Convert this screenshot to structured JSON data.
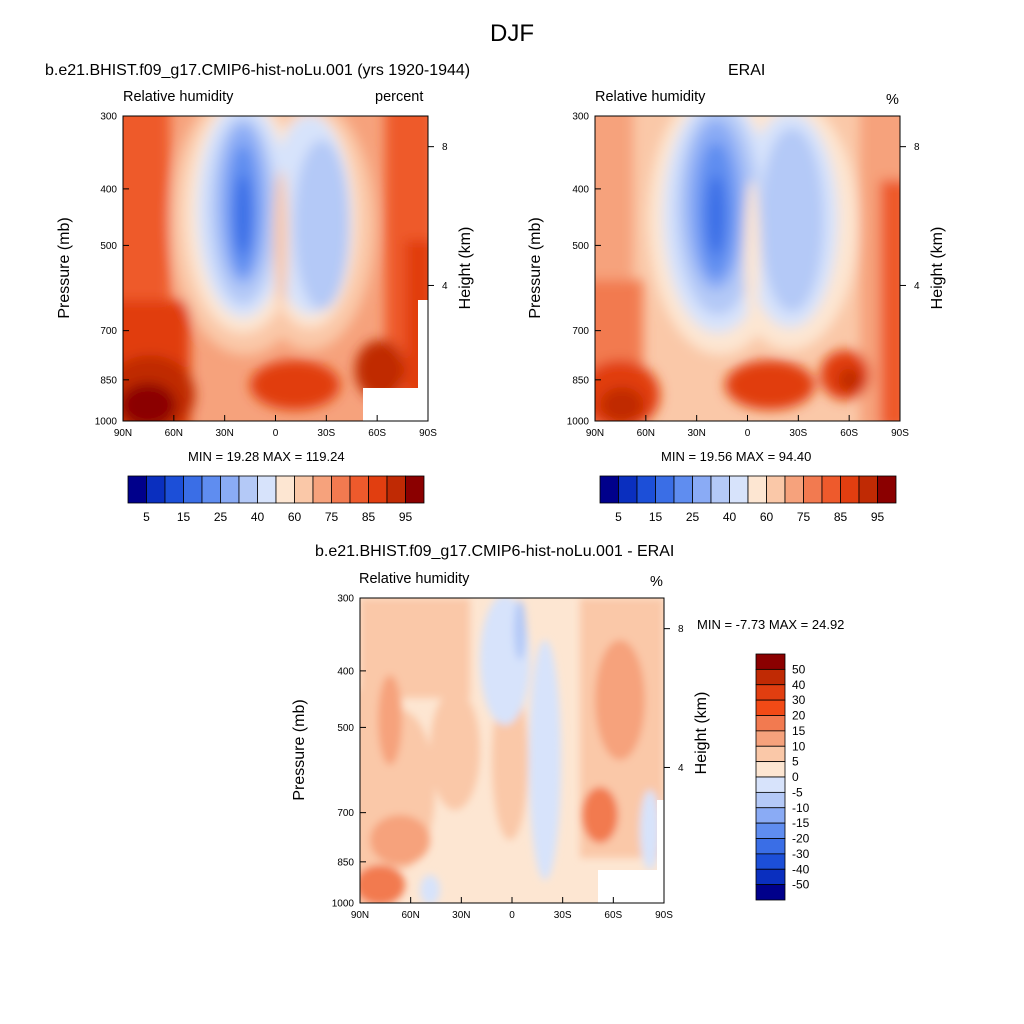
{
  "figure": {
    "title": "DJF"
  },
  "panels": [
    {
      "id": "model",
      "title": "b.e21.BHIST.f09_g17.CMIP6-hist-noLu.001 (yrs 1920-1944)",
      "left_label": "Relative humidity",
      "right_label": "percent",
      "stats": "MIN =  19.28  MAX = 119.24"
    },
    {
      "id": "obs",
      "title": "ERAI",
      "left_label": "Relative humidity",
      "right_label": "%",
      "stats": "MIN =  19.56  MAX =  94.40"
    },
    {
      "id": "diff",
      "title": "b.e21.BHIST.f09_g17.CMIP6-hist-noLu.001 - ERAI",
      "left_label": "Relative humidity",
      "right_label": "%",
      "stats": "MIN =  -7.73  MAX =  24.92"
    }
  ],
  "axes": {
    "ylabel": "Pressure (mb)",
    "ylabel_right": "Height (km)",
    "x_ticks": [
      "90N",
      "60N",
      "30N",
      "0",
      "30S",
      "60S",
      "90S"
    ],
    "y_ticks": [
      "300",
      "400",
      "500",
      "700",
      "850",
      "1000"
    ],
    "y_right_ticks": [
      "8",
      "4"
    ]
  },
  "colorbar_main": {
    "colors": [
      "#00008b",
      "#0a2fbf",
      "#1c4fd8",
      "#3a6ee6",
      "#5f8df0",
      "#8aabf5",
      "#b4c9f7",
      "#d7e3fb",
      "#fde6d2",
      "#fac8a8",
      "#f6a27c",
      "#f27a50",
      "#ee5a2c",
      "#e13e10",
      "#c02a04",
      "#8b0000"
    ],
    "labels": [
      "5",
      "15",
      "25",
      "40",
      "60",
      "75",
      "85",
      "95"
    ]
  },
  "colorbar_diff": {
    "colors": [
      "#8b0000",
      "#c02a04",
      "#e13e10",
      "#f24a16",
      "#f27a50",
      "#f6a27c",
      "#fac8a8",
      "#fde6d2",
      "#d7e3fb",
      "#b4c9f7",
      "#8aabf5",
      "#5f8df0",
      "#3a6ee6",
      "#1c4fd8",
      "#0a2fbf",
      "#00008b"
    ],
    "labels": [
      "50",
      "40",
      "30",
      "20",
      "15",
      "10",
      "5",
      "0",
      "-5",
      "-10",
      "-15",
      "-20",
      "-30",
      "-40",
      "-50"
    ]
  },
  "chart_data": [
    {
      "type": "heatmap",
      "title": "b.e21.BHIST.f09_g17.CMIP6-hist-noLu.001 (yrs 1920-1944)",
      "variable": "Relative humidity",
      "units": "percent",
      "x": [
        "90N",
        "60N",
        "30N",
        "0",
        "30S",
        "60S",
        "90S"
      ],
      "y": [
        300,
        400,
        500,
        700,
        850,
        1000
      ],
      "min": 19.28,
      "max": 119.24
    },
    {
      "type": "heatmap",
      "title": "ERAI",
      "variable": "Relative humidity",
      "units": "%",
      "x": [
        "90N",
        "60N",
        "30N",
        "0",
        "30S",
        "60S",
        "90S"
      ],
      "y": [
        300,
        400,
        500,
        700,
        850,
        1000
      ],
      "min": 19.56,
      "max": 94.4
    },
    {
      "type": "heatmap",
      "title": "b.e21.BHIST.f09_g17.CMIP6-hist-noLu.001 - ERAI",
      "variable": "Relative humidity",
      "units": "%",
      "x": [
        "90N",
        "60N",
        "30N",
        "0",
        "30S",
        "60S",
        "90S"
      ],
      "y": [
        300,
        400,
        500,
        700,
        850,
        1000
      ],
      "min": -7.73,
      "max": 24.92
    }
  ]
}
